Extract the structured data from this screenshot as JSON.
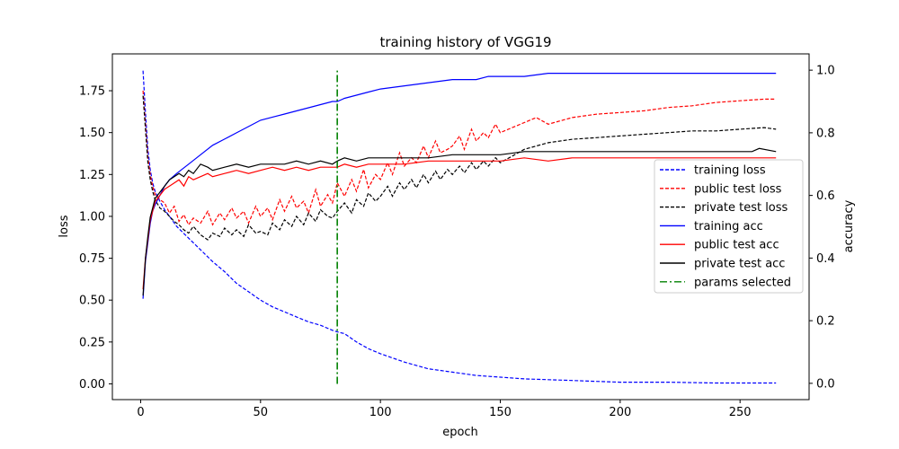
{
  "chart_data": {
    "type": "line",
    "title": "training history of VGG19",
    "xlabel": "epoch",
    "ylabel": "loss",
    "y2label": "accuracy",
    "xlim": [
      -11.8,
      278.8
    ],
    "ylim": [
      -0.094,
      1.97
    ],
    "y2lim": [
      -0.052,
      1.052
    ],
    "xticks": [
      0,
      50,
      100,
      150,
      200,
      250
    ],
    "yticks": [
      0.0,
      0.25,
      0.5,
      0.75,
      1.0,
      1.25,
      1.5,
      1.75
    ],
    "y2ticks": [
      0.0,
      0.2,
      0.4,
      0.6,
      0.8,
      1.0
    ],
    "grid": false,
    "legend_position": "center-right",
    "params_selected_epoch": 82,
    "series": [
      {
        "name": "training loss",
        "axis": "left",
        "color": "#0000ff",
        "style": "dashed",
        "x": [
          1,
          2,
          3,
          4,
          5,
          6,
          8,
          10,
          12,
          15,
          20,
          25,
          30,
          35,
          40,
          45,
          50,
          55,
          60,
          65,
          70,
          75,
          80,
          82,
          85,
          90,
          95,
          100,
          110,
          120,
          130,
          140,
          150,
          160,
          170,
          180,
          190,
          200,
          220,
          240,
          265
        ],
        "y": [
          1.87,
          1.62,
          1.4,
          1.28,
          1.2,
          1.15,
          1.09,
          1.04,
          1.0,
          0.94,
          0.87,
          0.8,
          0.73,
          0.67,
          0.6,
          0.55,
          0.5,
          0.46,
          0.43,
          0.4,
          0.37,
          0.35,
          0.32,
          0.31,
          0.3,
          0.25,
          0.21,
          0.18,
          0.13,
          0.09,
          0.07,
          0.05,
          0.04,
          0.03,
          0.025,
          0.02,
          0.015,
          0.01,
          0.01,
          0.005,
          0.005
        ]
      },
      {
        "name": "public test loss",
        "axis": "left",
        "color": "#ff0000",
        "style": "dashed",
        "x": [
          1,
          2,
          3,
          4,
          5,
          6,
          8,
          10,
          12,
          14,
          16,
          18,
          20,
          22,
          25,
          28,
          30,
          33,
          35,
          38,
          40,
          43,
          45,
          48,
          50,
          53,
          55,
          58,
          60,
          63,
          65,
          68,
          70,
          73,
          75,
          78,
          80,
          82,
          85,
          88,
          90,
          93,
          95,
          98,
          100,
          103,
          105,
          108,
          110,
          113,
          115,
          118,
          120,
          123,
          125,
          128,
          130,
          133,
          135,
          138,
          140,
          143,
          145,
          148,
          150,
          155,
          160,
          165,
          170,
          180,
          190,
          200,
          210,
          220,
          230,
          240,
          250,
          260,
          265
        ],
        "y": [
          1.75,
          1.55,
          1.35,
          1.25,
          1.18,
          1.13,
          1.1,
          1.08,
          1.02,
          1.06,
          0.97,
          1.01,
          0.95,
          0.99,
          0.96,
          1.03,
          0.95,
          1.02,
          0.98,
          1.05,
          0.99,
          1.03,
          0.96,
          1.06,
          1.0,
          1.05,
          0.98,
          1.1,
          1.03,
          1.12,
          1.05,
          1.09,
          1.02,
          1.16,
          1.06,
          1.13,
          1.08,
          1.2,
          1.12,
          1.22,
          1.15,
          1.28,
          1.17,
          1.25,
          1.22,
          1.32,
          1.25,
          1.38,
          1.3,
          1.35,
          1.32,
          1.42,
          1.35,
          1.45,
          1.38,
          1.4,
          1.42,
          1.48,
          1.4,
          1.52,
          1.45,
          1.5,
          1.47,
          1.55,
          1.5,
          1.53,
          1.56,
          1.59,
          1.55,
          1.59,
          1.61,
          1.62,
          1.63,
          1.65,
          1.66,
          1.68,
          1.69,
          1.7,
          1.7
        ]
      },
      {
        "name": "private test loss",
        "axis": "left",
        "color": "#000000",
        "style": "dashed",
        "x": [
          1,
          2,
          3,
          4,
          5,
          6,
          8,
          10,
          12,
          14,
          16,
          18,
          20,
          22,
          25,
          28,
          30,
          33,
          35,
          38,
          40,
          43,
          45,
          48,
          50,
          53,
          55,
          58,
          60,
          63,
          65,
          68,
          70,
          73,
          75,
          78,
          80,
          82,
          85,
          88,
          90,
          93,
          95,
          98,
          100,
          103,
          105,
          108,
          110,
          113,
          115,
          118,
          120,
          123,
          125,
          128,
          130,
          133,
          135,
          138,
          140,
          143,
          145,
          148,
          150,
          155,
          160,
          165,
          170,
          180,
          190,
          200,
          210,
          220,
          230,
          240,
          250,
          260,
          265
        ],
        "y": [
          1.72,
          1.52,
          1.32,
          1.22,
          1.15,
          1.1,
          1.05,
          1.03,
          1.0,
          0.97,
          0.95,
          0.92,
          0.9,
          0.94,
          0.89,
          0.86,
          0.9,
          0.88,
          0.93,
          0.89,
          0.92,
          0.88,
          0.95,
          0.9,
          0.91,
          0.89,
          0.96,
          0.92,
          0.98,
          0.94,
          1.0,
          0.95,
          1.02,
          0.97,
          1.04,
          1.0,
          0.99,
          1.03,
          1.08,
          1.02,
          1.1,
          1.06,
          1.14,
          1.09,
          1.12,
          1.18,
          1.12,
          1.2,
          1.16,
          1.22,
          1.17,
          1.25,
          1.2,
          1.27,
          1.22,
          1.28,
          1.25,
          1.3,
          1.26,
          1.32,
          1.28,
          1.33,
          1.3,
          1.35,
          1.32,
          1.36,
          1.4,
          1.42,
          1.44,
          1.46,
          1.47,
          1.48,
          1.49,
          1.5,
          1.51,
          1.51,
          1.52,
          1.53,
          1.52
        ]
      },
      {
        "name": "training acc",
        "axis": "right",
        "color": "#0000ff",
        "style": "solid",
        "x": [
          1,
          2,
          3,
          4,
          5,
          6,
          8,
          10,
          12,
          15,
          20,
          25,
          30,
          35,
          40,
          45,
          50,
          55,
          60,
          65,
          70,
          75,
          80,
          82,
          85,
          90,
          95,
          100,
          110,
          120,
          130,
          140,
          145,
          150,
          160,
          170,
          180,
          200,
          220,
          240,
          265
        ],
        "y": [
          0.27,
          0.39,
          0.45,
          0.51,
          0.55,
          0.57,
          0.6,
          0.63,
          0.65,
          0.67,
          0.7,
          0.73,
          0.76,
          0.78,
          0.8,
          0.82,
          0.84,
          0.85,
          0.86,
          0.87,
          0.88,
          0.89,
          0.9,
          0.9,
          0.91,
          0.92,
          0.93,
          0.94,
          0.95,
          0.96,
          0.97,
          0.97,
          0.98,
          0.98,
          0.98,
          0.99,
          0.99,
          0.99,
          0.99,
          0.99,
          0.99
        ]
      },
      {
        "name": "public test acc",
        "axis": "right",
        "color": "#ff0000",
        "style": "solid",
        "x": [
          1,
          2,
          3,
          4,
          5,
          6,
          8,
          10,
          12,
          14,
          16,
          18,
          20,
          22,
          25,
          28,
          30,
          35,
          40,
          45,
          50,
          55,
          60,
          65,
          70,
          75,
          80,
          82,
          85,
          90,
          95,
          100,
          110,
          120,
          130,
          140,
          150,
          160,
          170,
          180,
          200,
          220,
          240,
          265
        ],
        "y": [
          0.3,
          0.4,
          0.46,
          0.52,
          0.55,
          0.58,
          0.6,
          0.62,
          0.63,
          0.64,
          0.65,
          0.63,
          0.66,
          0.65,
          0.66,
          0.67,
          0.66,
          0.67,
          0.68,
          0.67,
          0.68,
          0.69,
          0.68,
          0.69,
          0.68,
          0.69,
          0.69,
          0.69,
          0.7,
          0.69,
          0.7,
          0.7,
          0.7,
          0.71,
          0.71,
          0.71,
          0.71,
          0.72,
          0.71,
          0.72,
          0.72,
          0.72,
          0.72,
          0.72
        ]
      },
      {
        "name": "private test acc",
        "axis": "right",
        "color": "#000000",
        "style": "solid",
        "x": [
          1,
          2,
          3,
          4,
          5,
          6,
          8,
          10,
          12,
          14,
          16,
          18,
          20,
          22,
          25,
          28,
          30,
          35,
          40,
          45,
          50,
          55,
          60,
          65,
          70,
          75,
          80,
          82,
          85,
          90,
          95,
          100,
          110,
          120,
          130,
          140,
          150,
          160,
          170,
          180,
          200,
          220,
          240,
          255,
          258,
          265
        ],
        "y": [
          0.28,
          0.4,
          0.47,
          0.53,
          0.56,
          0.59,
          0.61,
          0.63,
          0.65,
          0.66,
          0.67,
          0.66,
          0.68,
          0.67,
          0.7,
          0.69,
          0.68,
          0.69,
          0.7,
          0.69,
          0.7,
          0.7,
          0.7,
          0.71,
          0.7,
          0.71,
          0.7,
          0.71,
          0.72,
          0.71,
          0.72,
          0.72,
          0.72,
          0.72,
          0.73,
          0.73,
          0.73,
          0.74,
          0.74,
          0.74,
          0.74,
          0.74,
          0.74,
          0.74,
          0.75,
          0.74
        ]
      }
    ],
    "vline": {
      "name": "params selected",
      "color": "#008000",
      "style": "dashdot",
      "x": 82,
      "ymin": 0.0,
      "ymax": 1.87
    }
  }
}
